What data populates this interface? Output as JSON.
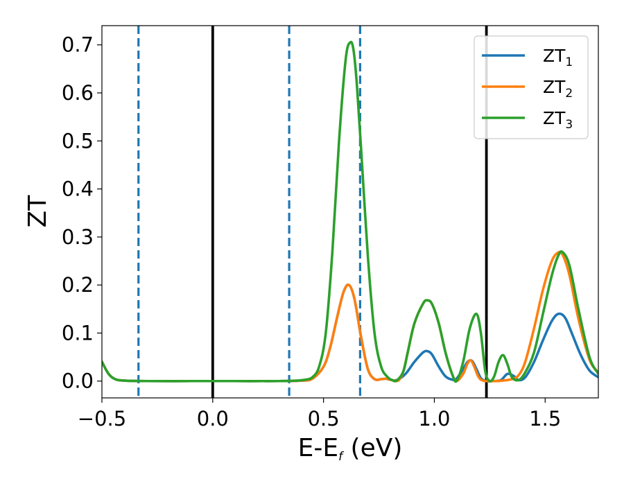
{
  "chart_data": {
    "type": "line",
    "xlabel": "E-E",
    "xlabel_sub": "f",
    "xlabel_unit": " (eV)",
    "ylabel": "ZT",
    "xlim": [
      -0.5,
      1.74
    ],
    "ylim": [
      -0.035,
      0.74
    ],
    "x_ticks": [
      -0.5,
      0.0,
      0.5,
      1.0,
      1.5
    ],
    "x_tick_labels": [
      "−0.5",
      "0.0",
      "0.5",
      "1.0",
      "1.5"
    ],
    "y_ticks": [
      0.0,
      0.1,
      0.2,
      0.3,
      0.4,
      0.5,
      0.6,
      0.7
    ],
    "y_tick_labels": [
      "0.0",
      "0.1",
      "0.2",
      "0.3",
      "0.4",
      "0.5",
      "0.6",
      "0.7"
    ],
    "grid": false,
    "legend_position": "top-right",
    "vertical_lines": [
      {
        "x": -0.335,
        "style": "dashed",
        "color": "#1f77b4"
      },
      {
        "x": 0.0,
        "style": "solid",
        "color": "#000000"
      },
      {
        "x": 0.345,
        "style": "dashed",
        "color": "#1f77b4"
      },
      {
        "x": 0.665,
        "style": "dashed",
        "color": "#1f77b4"
      },
      {
        "x": 1.235,
        "style": "solid",
        "color": "#000000"
      }
    ],
    "series": [
      {
        "name": "ZT",
        "subscript": "1",
        "color": "#1f77b4",
        "x": [
          -0.5,
          -0.47,
          -0.44,
          -0.4,
          -0.3,
          -0.1,
          0.1,
          0.3,
          0.4,
          0.45,
          0.5,
          0.53,
          0.56,
          0.59,
          0.615,
          0.64,
          0.67,
          0.7,
          0.73,
          0.76,
          0.78,
          0.8,
          0.83,
          0.87,
          0.91,
          0.95,
          0.97,
          0.99,
          1.02,
          1.05,
          1.08,
          1.1,
          1.13,
          1.15,
          1.17,
          1.19,
          1.21,
          1.235,
          1.26,
          1.3,
          1.33,
          1.36,
          1.38,
          1.41,
          1.45,
          1.49,
          1.53,
          1.56,
          1.59,
          1.62,
          1.66,
          1.7,
          1.74
        ],
        "y": [
          0.04,
          0.015,
          0.004,
          0.001,
          0.0,
          0.0,
          0.0,
          0.0,
          0.001,
          0.005,
          0.03,
          0.07,
          0.13,
          0.185,
          0.2,
          0.17,
          0.09,
          0.025,
          0.004,
          0.004,
          0.005,
          0.003,
          0.002,
          0.015,
          0.04,
          0.06,
          0.062,
          0.055,
          0.03,
          0.01,
          0.003,
          0.005,
          0.025,
          0.04,
          0.042,
          0.025,
          0.006,
          0.0,
          0.0,
          0.002,
          0.015,
          0.01,
          0.002,
          0.008,
          0.04,
          0.085,
          0.125,
          0.14,
          0.132,
          0.1,
          0.055,
          0.022,
          0.008
        ]
      },
      {
        "name": "ZT",
        "subscript": "2",
        "color": "#ff7f0e",
        "x": [
          -0.5,
          -0.47,
          -0.44,
          -0.4,
          -0.3,
          -0.1,
          0.1,
          0.3,
          0.4,
          0.45,
          0.5,
          0.53,
          0.56,
          0.59,
          0.615,
          0.64,
          0.67,
          0.7,
          0.73,
          0.76,
          0.78,
          0.8,
          0.82,
          0.84,
          0.86,
          0.88,
          0.91,
          0.95,
          0.97,
          0.99,
          1.02,
          1.05,
          1.08,
          1.1,
          1.13,
          1.15,
          1.165,
          1.18,
          1.2,
          1.22,
          1.25,
          1.28,
          1.31,
          1.35,
          1.38,
          1.41,
          1.45,
          1.49,
          1.53,
          1.56,
          1.58,
          1.61,
          1.65,
          1.7,
          1.74
        ],
        "y": [
          0.04,
          0.015,
          0.004,
          0.001,
          0.0,
          0.0,
          0.0,
          0.0,
          0.001,
          0.005,
          0.03,
          0.07,
          0.13,
          0.185,
          0.2,
          0.17,
          0.09,
          0.025,
          0.004,
          0.004,
          0.005,
          0.003,
          0.001,
          0.002,
          0.02,
          0.06,
          0.12,
          0.162,
          0.168,
          0.16,
          0.12,
          0.06,
          0.015,
          0.0,
          0.015,
          0.037,
          0.043,
          0.03,
          0.008,
          0.001,
          0.0,
          0.0,
          0.001,
          0.004,
          0.012,
          0.04,
          0.11,
          0.19,
          0.25,
          0.268,
          0.262,
          0.22,
          0.13,
          0.045,
          0.018
        ]
      },
      {
        "name": "ZT",
        "subscript": "3",
        "color": "#2ca02c",
        "x": [
          -0.5,
          -0.47,
          -0.44,
          -0.4,
          -0.3,
          -0.1,
          0.1,
          0.3,
          0.38,
          0.42,
          0.45,
          0.48,
          0.51,
          0.54,
          0.57,
          0.6,
          0.62,
          0.635,
          0.65,
          0.67,
          0.7,
          0.73,
          0.76,
          0.79,
          0.81,
          0.83,
          0.86,
          0.88,
          0.91,
          0.95,
          0.97,
          0.99,
          1.02,
          1.05,
          1.08,
          1.1,
          1.13,
          1.16,
          1.19,
          1.21,
          1.23,
          1.25,
          1.27,
          1.29,
          1.31,
          1.33,
          1.35,
          1.38,
          1.41,
          1.45,
          1.49,
          1.53,
          1.56,
          1.58,
          1.61,
          1.65,
          1.7,
          1.74
        ],
        "y": [
          0.04,
          0.015,
          0.004,
          0.001,
          0.0,
          0.0,
          0.0,
          0.0,
          0.001,
          0.003,
          0.008,
          0.03,
          0.1,
          0.27,
          0.5,
          0.67,
          0.705,
          0.69,
          0.62,
          0.48,
          0.26,
          0.1,
          0.03,
          0.008,
          0.002,
          0.001,
          0.02,
          0.06,
          0.12,
          0.162,
          0.168,
          0.16,
          0.12,
          0.06,
          0.015,
          0.0,
          0.04,
          0.11,
          0.14,
          0.1,
          0.02,
          0.0,
          0.01,
          0.04,
          0.054,
          0.035,
          0.008,
          0.002,
          0.018,
          0.06,
          0.14,
          0.22,
          0.262,
          0.268,
          0.24,
          0.15,
          0.05,
          0.015
        ]
      }
    ]
  }
}
